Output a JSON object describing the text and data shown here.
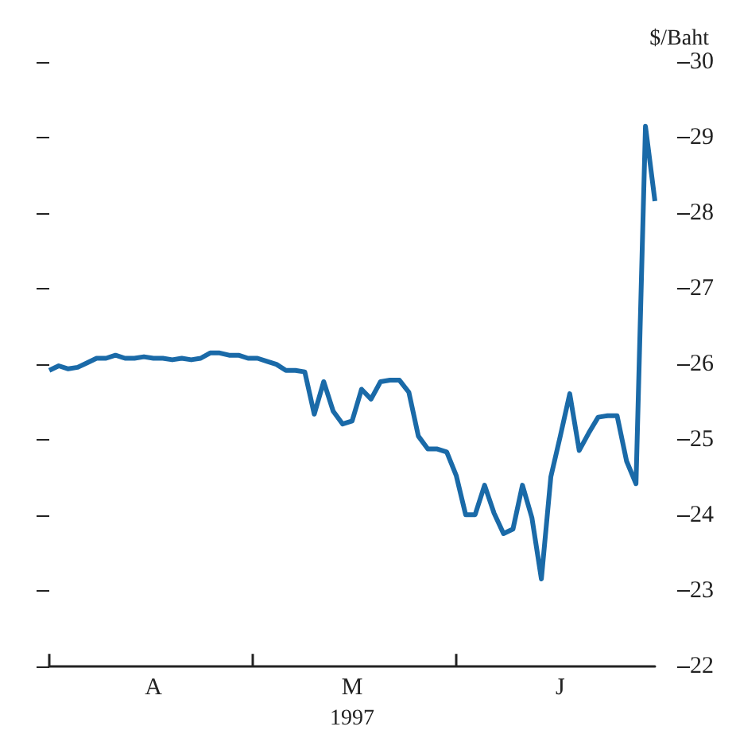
{
  "chart_data": {
    "type": "line",
    "ylabel": "$/Baht",
    "xlabel": "1997",
    "marker": "none",
    "line_style": "solid",
    "categories": [
      null,
      null,
      null,
      null,
      null,
      null,
      null,
      null,
      null,
      null,
      null,
      "A",
      null,
      null,
      null,
      null,
      null,
      null,
      null,
      null,
      null,
      null,
      null,
      null,
      null,
      null,
      null,
      null,
      null,
      null,
      null,
      null,
      "M",
      null,
      null,
      null,
      null,
      null,
      null,
      null,
      null,
      null,
      null,
      null,
      null,
      null,
      null,
      null,
      null,
      null,
      null,
      null,
      null,
      null,
      "J",
      null,
      null,
      null,
      null,
      null,
      null,
      null,
      null,
      null,
      null
    ],
    "series": [
      {
        "color": "#1a6aa8",
        "values": [
          25.92,
          25.98,
          25.94,
          25.96,
          26.02,
          26.08,
          26.08,
          26.12,
          26.08,
          26.08,
          26.1,
          26.08,
          26.08,
          26.06,
          26.08,
          26.06,
          26.08,
          26.15,
          26.15,
          26.12,
          26.12,
          26.08,
          26.08,
          26.04,
          26.0,
          25.92,
          25.92,
          25.9,
          25.34,
          25.77,
          25.38,
          25.21,
          25.25,
          25.67,
          25.54,
          25.77,
          25.79,
          25.79,
          25.63,
          25.05,
          24.88,
          24.88,
          24.84,
          24.53,
          24.01,
          24.01,
          24.4,
          24.03,
          23.76,
          23.82,
          24.4,
          23.97,
          23.16,
          24.51,
          25.05,
          25.61,
          24.86,
          25.09,
          25.3,
          25.32,
          25.32,
          24.72,
          24.42,
          29.15,
          28.16
        ]
      }
    ],
    "ylim": [
      22,
      30
    ],
    "yticks": [
      22,
      23,
      24,
      25,
      26,
      27,
      28,
      29,
      30
    ]
  }
}
